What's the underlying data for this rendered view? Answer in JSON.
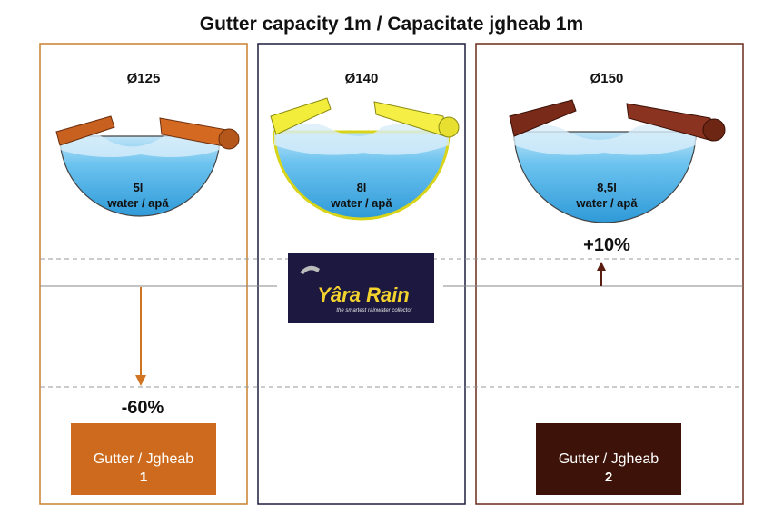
{
  "title": "Gutter capacity 1m / Capacitate jgheab 1m",
  "panels": [
    {
      "diameter": "Ø125",
      "capacity": "5l",
      "label": "water / apă",
      "change": "-60%",
      "gutter": "Gutter / Jgheab",
      "number": "1"
    },
    {
      "diameter": "Ø140",
      "capacity": "8l",
      "label": "water / apă"
    },
    {
      "diameter": "Ø150",
      "capacity": "8,5l",
      "label": "water / apă",
      "change": "+10%",
      "gutter": "Gutter / Jgheab",
      "number": "2"
    }
  ],
  "logo": {
    "name": "Yâra Rain",
    "tagline": "the smartest rainwater collector"
  }
}
